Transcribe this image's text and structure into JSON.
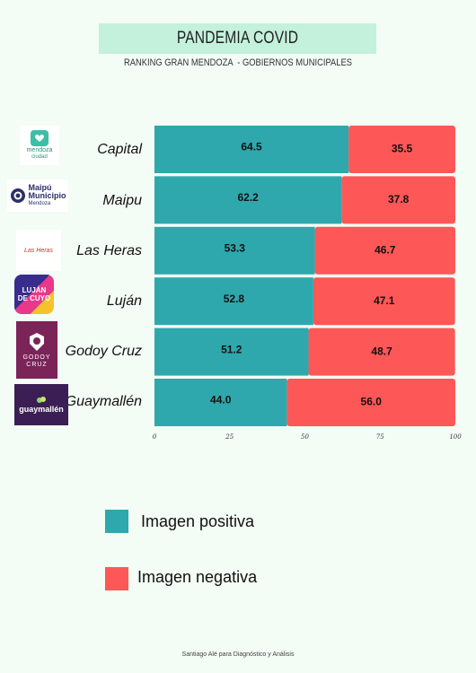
{
  "header": {
    "title": "PANDEMIA COVID",
    "subtitle": "RANKING GRAN MENDOZA  - GOBIERNOS MUNICIPALES"
  },
  "logos": {
    "capital": {
      "line1": "mendoza",
      "line2": "ciudad"
    },
    "maipu": {
      "line1": "Maipú",
      "line2": "Municipio",
      "line3": "Mendoza"
    },
    "lasheras": {
      "line1": "Las Heras"
    },
    "lujan": {
      "line1": "LUJÁN",
      "line2": "DE CUYO"
    },
    "godoycruz": {
      "line1": "GODOY",
      "line2": "CRUZ"
    },
    "guaymallen": {
      "line1": "guaymallén"
    }
  },
  "chart_data": {
    "type": "bar",
    "orientation": "horizontal",
    "stacked": true,
    "categories": [
      "Capital",
      "Maipu",
      "Las Heras",
      "Luján",
      "Godoy Cruz",
      "Guaymallén"
    ],
    "series": [
      {
        "name": "Imagen positiva",
        "color": "#2fa8ad",
        "values": [
          64.5,
          62.2,
          53.3,
          52.8,
          51.2,
          44.0
        ]
      },
      {
        "name": "Imagen negativa",
        "color": "#fe5757",
        "values": [
          35.5,
          37.8,
          46.7,
          47.1,
          48.7,
          56.0
        ]
      }
    ],
    "value_labels": [
      [
        "64.5",
        "62.2",
        "53.3",
        "52.8",
        "51.2",
        "44.0"
      ],
      [
        "35.5",
        "37.8",
        "46.7",
        "47.1",
        "48.7",
        "56.0"
      ]
    ],
    "xlim": [
      0,
      100
    ],
    "xticks": [
      "0",
      "25",
      "50",
      "75",
      "100"
    ],
    "grid": false,
    "legend_position": "bottom-left"
  },
  "legend": {
    "positive_label": "Imagen positiva",
    "negative_label": "Imagen negativa",
    "positive_color": "#2fa8ad",
    "negative_color": "#fe5757"
  },
  "footer": "Santiago Alé para Diagnóstico y Análisis"
}
